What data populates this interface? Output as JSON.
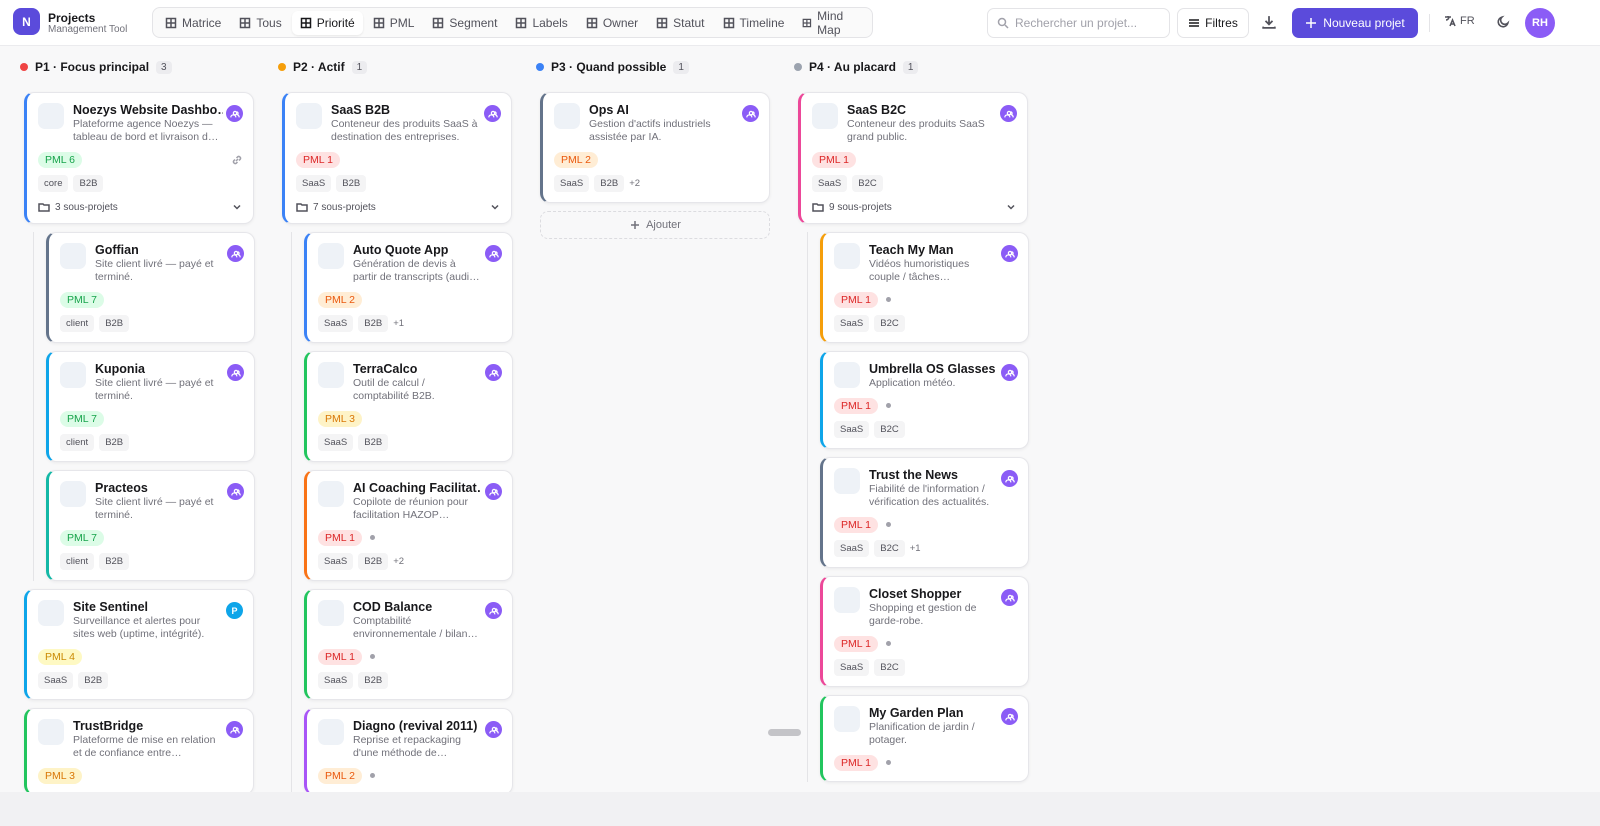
{
  "header": {
    "logo": "N",
    "title": "Projects",
    "subtitle": "Management Tool",
    "nav": [
      {
        "label": "Matrice"
      },
      {
        "label": "Tous"
      },
      {
        "label": "Priorité",
        "active": true
      },
      {
        "label": "PML"
      },
      {
        "label": "Segment"
      },
      {
        "label": "Labels"
      },
      {
        "label": "Owner"
      },
      {
        "label": "Statut"
      },
      {
        "label": "Timeline"
      },
      {
        "label": "Mind Map"
      }
    ],
    "search": "Rechercher un projet...",
    "filters": "Filtres",
    "new_project": "Nouveau projet",
    "lang": "FR",
    "avatar": "RH"
  },
  "columns": [
    {
      "title": "P1 · Focus principal",
      "count": "3",
      "color": "#ef4444",
      "cards": [
        {
          "title": "Noezys Website Dashbo…",
          "desc": "Plateforme agence Noezys — tableau de bord et livraison d…",
          "pml": "PML 6",
          "pml_tone": "green",
          "link": true,
          "tags": [
            "core",
            "B2B"
          ],
          "subprojects": "3 sous-projets",
          "accent": "#3b82f6",
          "children": [
            {
              "title": "Goffian",
              "desc": "Site client livré — payé et terminé.",
              "pml": "PML 7",
              "pml_tone": "green",
              "tags": [
                "client",
                "B2B"
              ],
              "accent": "#64748b"
            },
            {
              "title": "Kuponia",
              "desc": "Site client livré — payé et terminé.",
              "pml": "PML 7",
              "pml_tone": "green",
              "tags": [
                "client",
                "B2B"
              ],
              "accent": "#0ea5e9"
            },
            {
              "title": "Practeos",
              "desc": "Site client livré — payé et terminé.",
              "pml": "PML 7",
              "pml_tone": "green",
              "tags": [
                "client",
                "B2B"
              ],
              "accent": "#14b8a6"
            }
          ]
        },
        {
          "title": "Site Sentinel",
          "desc": "Surveillance et alertes pour sites web (uptime, intégrité).",
          "pml": "PML 4",
          "pml_tone": "yellow",
          "tags": [
            "SaaS",
            "B2B"
          ],
          "owner": "P",
          "accent": "#0ea5e9"
        },
        {
          "title": "TrustBridge",
          "desc": "Plateforme de mise en relation et de confiance entre…",
          "pml": "PML 3",
          "pml_tone": "amber",
          "accent": "#22c55e"
        }
      ]
    },
    {
      "title": "P2 · Actif",
      "count": "1",
      "color": "#f59e0b",
      "cards": [
        {
          "title": "SaaS B2B",
          "desc": "Conteneur des produits SaaS à destination des entreprises.",
          "pml": "PML 1",
          "pml_tone": "red",
          "tags": [
            "SaaS",
            "B2B"
          ],
          "subprojects": "7 sous-projets",
          "accent": "#3b82f6",
          "children": [
            {
              "title": "Auto Quote App",
              "desc": "Génération de devis à partir de transcripts (audi…",
              "pml": "PML 2",
              "pml_tone": "orange",
              "tags": [
                "SaaS",
                "B2B"
              ],
              "more": "+1",
              "accent": "#3b82f6"
            },
            {
              "title": "TerraCalco",
              "desc": "Outil de calcul / comptabilité B2B.",
              "pml": "PML 3",
              "pml_tone": "amber",
              "tags": [
                "SaaS",
                "B2B"
              ],
              "accent": "#22c55e"
            },
            {
              "title": "AI Coaching Facilitat…",
              "desc": "Copilote de réunion pour facilitation HAZOP…",
              "pml": "PML 1",
              "pml_tone": "red",
              "status_dot": true,
              "tags": [
                "SaaS",
                "B2B"
              ],
              "more": "+2",
              "accent": "#f97316"
            },
            {
              "title": "COD Balance",
              "desc": "Comptabilité environnementale / bilan…",
              "pml": "PML 1",
              "pml_tone": "red",
              "status_dot": true,
              "tags": [
                "SaaS",
                "B2B"
              ],
              "accent": "#22c55e"
            },
            {
              "title": "Diagno (revival 2011)",
              "desc": "Reprise et repackaging d'une méthode de…",
              "pml": "PML 2",
              "pml_tone": "orange",
              "status_dot": true,
              "accent": "#a855f7"
            }
          ]
        }
      ]
    },
    {
      "title": "P3 · Quand possible",
      "count": "1",
      "color": "#3b82f6",
      "add_label": "Ajouter",
      "cards": [
        {
          "title": "Ops AI",
          "desc": "Gestion d'actifs industriels assistée par IA.",
          "pml": "PML 2",
          "pml_tone": "orange",
          "tags": [
            "SaaS",
            "B2B"
          ],
          "more": "+2",
          "accent": "#64748b"
        }
      ]
    },
    {
      "title": "P4 · Au placard",
      "count": "1",
      "color": "#9ca3af",
      "cards": [
        {
          "title": "SaaS B2C",
          "desc": "Conteneur des produits SaaS grand public.",
          "pml": "PML 1",
          "pml_tone": "red",
          "tags": [
            "SaaS",
            "B2C"
          ],
          "subprojects": "9 sous-projets",
          "accent": "#ec4899",
          "children": [
            {
              "title": "Teach My Man",
              "desc": "Vidéos humoristiques couple / tâches…",
              "pml": "PML 1",
              "pml_tone": "red",
              "status_dot": true,
              "tags": [
                "SaaS",
                "B2C"
              ],
              "accent": "#f59e0b"
            },
            {
              "title": "Umbrella OS Glasses",
              "desc": "Application météo.",
              "pml": "PML 1",
              "pml_tone": "red",
              "status_dot": true,
              "tags": [
                "SaaS",
                "B2C"
              ],
              "accent": "#0ea5e9"
            },
            {
              "title": "Trust the News",
              "desc": "Fiabilité de l'information / vérification des actualités.",
              "pml": "PML 1",
              "pml_tone": "red",
              "status_dot": true,
              "tags": [
                "SaaS",
                "B2C"
              ],
              "more": "+1",
              "accent": "#64748b"
            },
            {
              "title": "Closet Shopper",
              "desc": "Shopping et gestion de garde-robe.",
              "pml": "PML 1",
              "pml_tone": "red",
              "status_dot": true,
              "tags": [
                "SaaS",
                "B2C"
              ],
              "accent": "#ec4899"
            },
            {
              "title": "My Garden Plan",
              "desc": "Planification de jardin / potager.",
              "pml": "PML 1",
              "pml_tone": "red",
              "status_dot": true,
              "accent": "#22c55e"
            }
          ]
        }
      ]
    }
  ]
}
